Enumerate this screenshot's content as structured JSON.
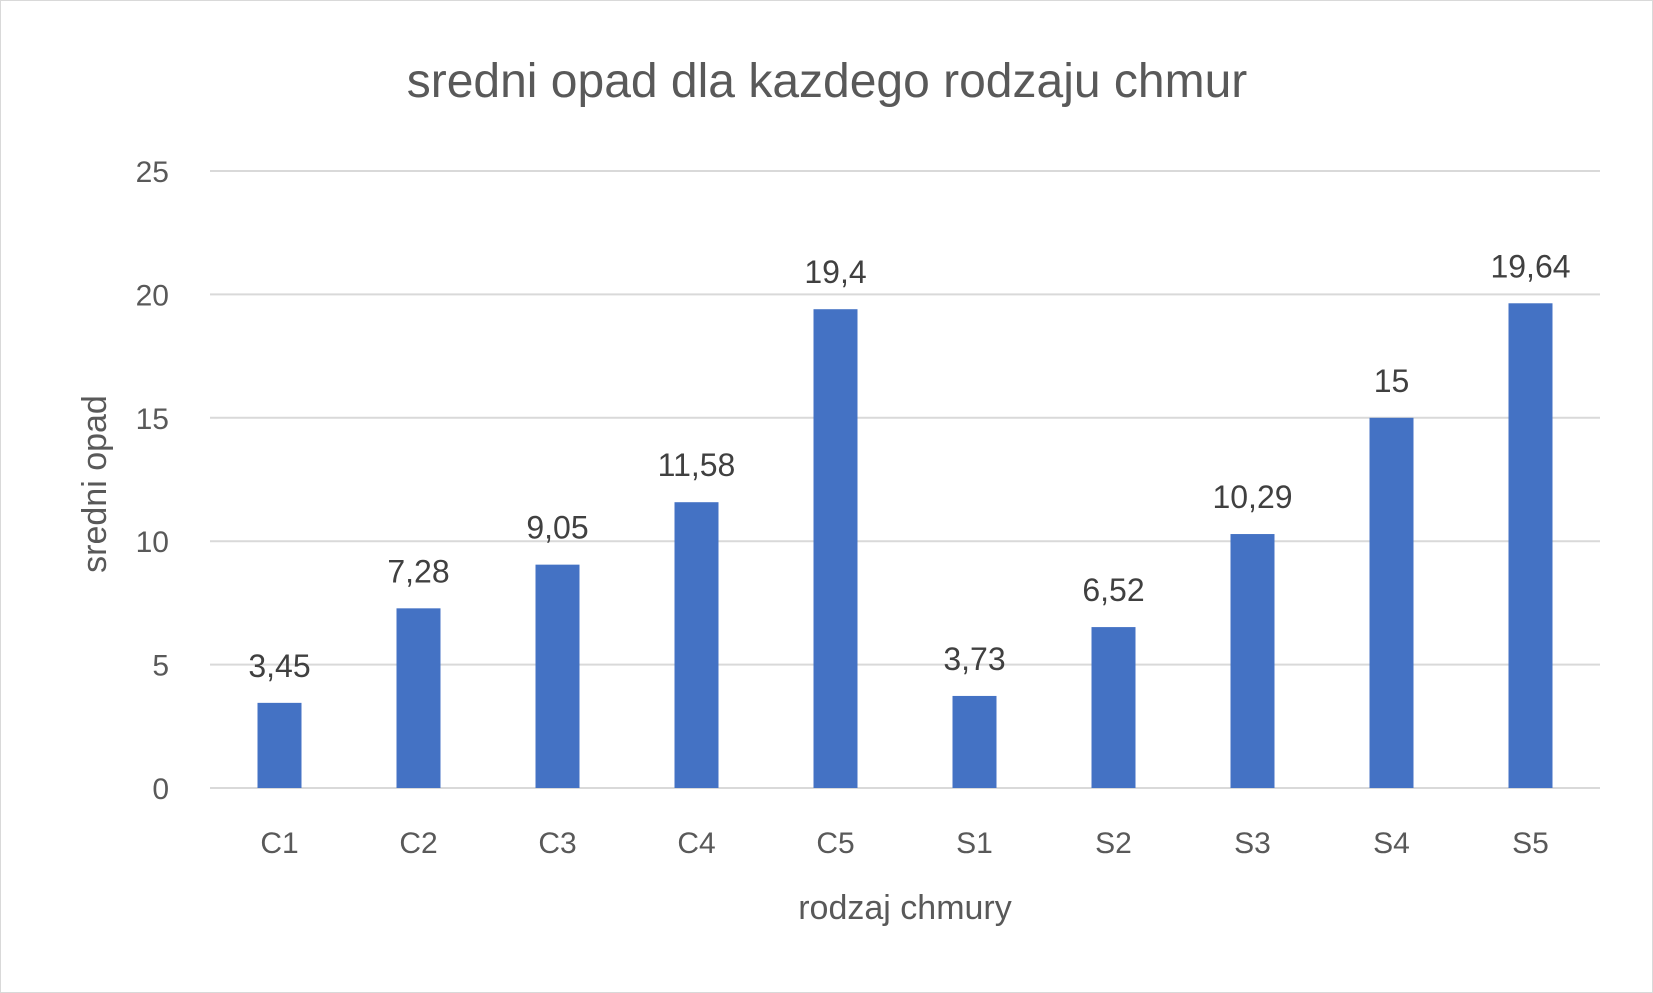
{
  "chart_data": {
    "type": "bar",
    "title": "sredni opad dla kazdego rodzaju chmur",
    "xlabel": "rodzaj chmury",
    "ylabel": "sredni opad",
    "categories": [
      "C1",
      "C2",
      "C3",
      "C4",
      "C5",
      "S1",
      "S2",
      "S3",
      "S4",
      "S5"
    ],
    "values": [
      3.45,
      7.28,
      9.05,
      11.58,
      19.4,
      3.73,
      6.52,
      10.29,
      15,
      19.64
    ],
    "data_labels": [
      "3,45",
      "7,28",
      "9,05",
      "11,58",
      "19,4",
      "3,73",
      "6,52",
      "10,29",
      "15",
      "19,64"
    ],
    "yticks": [
      0,
      5,
      10,
      15,
      20,
      25
    ],
    "ylim": [
      0,
      25
    ],
    "grid": true,
    "legend": "none",
    "bar_color": "#4472c4"
  }
}
